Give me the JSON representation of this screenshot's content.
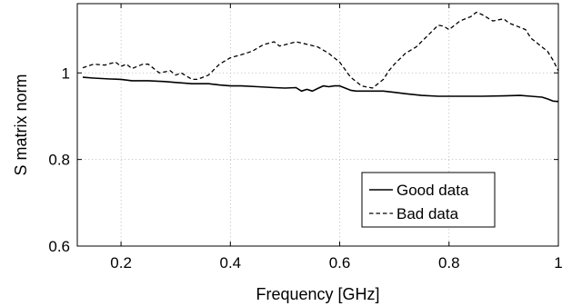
{
  "chart_data": {
    "type": "line",
    "title": "",
    "xlabel": "Frequency [GHz]",
    "ylabel": "S matrix norm",
    "xlim": [
      0.12,
      1.0
    ],
    "ylim": [
      0.6,
      1.16
    ],
    "xticks": [
      0.2,
      0.4,
      0.6,
      0.8,
      1
    ],
    "xtick_labels": [
      "0.2",
      "0.4",
      "0.6",
      "0.8",
      "1"
    ],
    "yticks": [
      0.6,
      0.8,
      1
    ],
    "ytick_labels": [
      "0.6",
      "0.8",
      "1"
    ],
    "grid": true,
    "legend_position": "lower-right",
    "series": [
      {
        "name": "Good data",
        "style": "solid",
        "color": "#000000",
        "x": [
          0.13,
          0.15,
          0.18,
          0.2,
          0.22,
          0.25,
          0.28,
          0.3,
          0.33,
          0.36,
          0.38,
          0.4,
          0.42,
          0.45,
          0.48,
          0.5,
          0.52,
          0.53,
          0.54,
          0.55,
          0.56,
          0.57,
          0.58,
          0.59,
          0.6,
          0.61,
          0.62,
          0.63,
          0.65,
          0.68,
          0.7,
          0.72,
          0.75,
          0.78,
          0.8,
          0.83,
          0.86,
          0.9,
          0.93,
          0.95,
          0.97,
          0.98,
          0.99,
          1.0
        ],
        "y": [
          0.99,
          0.988,
          0.986,
          0.985,
          0.982,
          0.982,
          0.98,
          0.978,
          0.975,
          0.975,
          0.972,
          0.97,
          0.97,
          0.968,
          0.966,
          0.965,
          0.966,
          0.958,
          0.962,
          0.958,
          0.964,
          0.97,
          0.968,
          0.97,
          0.97,
          0.965,
          0.96,
          0.958,
          0.958,
          0.958,
          0.955,
          0.952,
          0.948,
          0.946,
          0.946,
          0.946,
          0.946,
          0.947,
          0.948,
          0.946,
          0.944,
          0.94,
          0.935,
          0.934
        ]
      },
      {
        "name": "Bad data",
        "style": "dashed",
        "color": "#000000",
        "x": [
          0.13,
          0.15,
          0.17,
          0.19,
          0.2,
          0.21,
          0.22,
          0.24,
          0.25,
          0.27,
          0.29,
          0.3,
          0.31,
          0.33,
          0.34,
          0.36,
          0.38,
          0.4,
          0.42,
          0.44,
          0.46,
          0.48,
          0.49,
          0.5,
          0.52,
          0.54,
          0.56,
          0.58,
          0.6,
          0.62,
          0.64,
          0.66,
          0.68,
          0.69,
          0.7,
          0.72,
          0.74,
          0.76,
          0.78,
          0.79,
          0.8,
          0.82,
          0.84,
          0.85,
          0.86,
          0.88,
          0.9,
          0.91,
          0.92,
          0.94,
          0.95,
          0.97,
          0.98,
          0.99,
          1.0
        ],
        "y": [
          1.012,
          1.02,
          1.018,
          1.025,
          1.015,
          1.02,
          1.01,
          1.02,
          1.02,
          1.0,
          1.005,
          0.995,
          1.0,
          0.985,
          0.985,
          0.995,
          1.02,
          1.035,
          1.042,
          1.05,
          1.065,
          1.072,
          1.062,
          1.065,
          1.072,
          1.066,
          1.06,
          1.045,
          1.025,
          0.99,
          0.97,
          0.965,
          0.985,
          1.005,
          1.02,
          1.045,
          1.06,
          1.085,
          1.11,
          1.108,
          1.1,
          1.12,
          1.13,
          1.14,
          1.135,
          1.12,
          1.125,
          1.115,
          1.11,
          1.1,
          1.08,
          1.06,
          1.05,
          1.03,
          1.005
        ]
      }
    ]
  }
}
